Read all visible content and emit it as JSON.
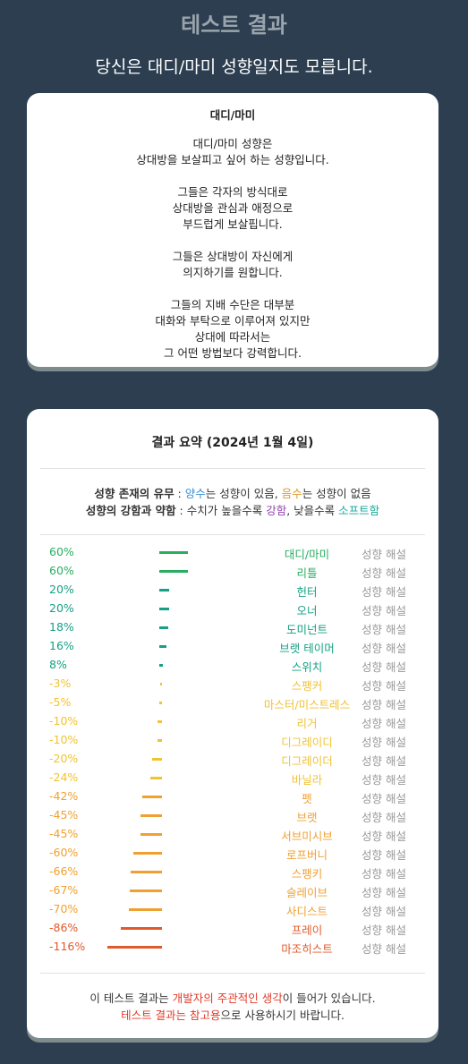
{
  "header": {
    "title": "테스트 결과",
    "subtitle": "당신은 대디/마미 성향일지도 모릅니다."
  },
  "card": {
    "title": "대디/마미",
    "paragraphs": [
      [
        "대디/마미 성향은",
        "상대방을 보살피고 싶어 하는 성향입니다."
      ],
      [
        "그들은 각자의 방식대로",
        "상대방을 관심과 애정으로",
        "부드럽게 보살핍니다."
      ],
      [
        "그들은 상대방이 자신에게",
        "의지하기를 원합니다."
      ],
      [
        "그들의 지배 수단은 대부분",
        "대화와 부탁으로 이루어져 있지만",
        "상대에 따라서는",
        "그 어떤 방법보다 강력합니다."
      ]
    ]
  },
  "summary": {
    "title": "결과 요약 (2024년 1월 4일)",
    "legend": [
      [
        {
          "text": "성향 존재의 유무",
          "bold": true
        },
        {
          "text": " : "
        },
        {
          "text": "양수",
          "color": "#3a8fd0"
        },
        {
          "text": "는 성향이 있음, "
        },
        {
          "text": "음수",
          "color": "#e09a2a"
        },
        {
          "text": "는 성향이 없음"
        }
      ],
      [
        {
          "text": "성향의 강함과 약함",
          "bold": true
        },
        {
          "text": " : 수치가 높을수록 "
        },
        {
          "text": "강함",
          "color": "#8e44ad"
        },
        {
          "text": ", 낮을수록 "
        },
        {
          "text": "소프트함",
          "color": "#1aa89a"
        }
      ]
    ],
    "link_text": "성향 해설",
    "rows": [
      {
        "value": 60,
        "value_label": "60%",
        "label": "대디/마미",
        "color": "#27ae60"
      },
      {
        "value": 60,
        "value_label": "60%",
        "label": "리틀",
        "color": "#27ae60"
      },
      {
        "value": 20,
        "value_label": "20%",
        "label": "헌터",
        "color": "#16a085"
      },
      {
        "value": 20,
        "value_label": "20%",
        "label": "오너",
        "color": "#16a085"
      },
      {
        "value": 18,
        "value_label": "18%",
        "label": "도미넌트",
        "color": "#16a085"
      },
      {
        "value": 16,
        "value_label": "16%",
        "label": "브랫 테이머",
        "color": "#16a085"
      },
      {
        "value": 8,
        "value_label": "8%",
        "label": "스위치",
        "color": "#16a085"
      },
      {
        "value": -3,
        "value_label": "-3%",
        "label": "스팽커",
        "color": "#f1c232"
      },
      {
        "value": -5,
        "value_label": "-5%",
        "label": "마스터/미스트레스",
        "color": "#f1c232"
      },
      {
        "value": -10,
        "value_label": "-10%",
        "label": "리거",
        "color": "#f1c232"
      },
      {
        "value": -10,
        "value_label": "-10%",
        "label": "디그레이디",
        "color": "#f1c232"
      },
      {
        "value": -20,
        "value_label": "-20%",
        "label": "디그레이더",
        "color": "#f1c232"
      },
      {
        "value": -24,
        "value_label": "-24%",
        "label": "바닐라",
        "color": "#f1c232"
      },
      {
        "value": -42,
        "value_label": "-42%",
        "label": "펫",
        "color": "#f0a030"
      },
      {
        "value": -45,
        "value_label": "-45%",
        "label": "브랫",
        "color": "#f0a030"
      },
      {
        "value": -45,
        "value_label": "-45%",
        "label": "서브미시브",
        "color": "#f0a030"
      },
      {
        "value": -60,
        "value_label": "-60%",
        "label": "로프버니",
        "color": "#f0a030"
      },
      {
        "value": -66,
        "value_label": "-66%",
        "label": "스팽키",
        "color": "#f0a030"
      },
      {
        "value": -67,
        "value_label": "-67%",
        "label": "슬레이브",
        "color": "#f0a030"
      },
      {
        "value": -70,
        "value_label": "-70%",
        "label": "사디스트",
        "color": "#f0a030"
      },
      {
        "value": -86,
        "value_label": "-86%",
        "label": "프레이",
        "color": "#e05a2b"
      },
      {
        "value": -116,
        "value_label": "-116%",
        "label": "마조히스트",
        "color": "#e05a2b"
      }
    ],
    "footer": [
      [
        {
          "text": "이 테스트 결과는 "
        },
        {
          "text": "개발자의 주관적인 생각",
          "color": "#e03a2a"
        },
        {
          "text": "이 들어가 있습니다."
        }
      ],
      [
        {
          "text": "테스트 결과는 참고용",
          "color": "#e03a2a"
        },
        {
          "text": "으로 사용하시기 바랍니다."
        }
      ]
    ]
  }
}
